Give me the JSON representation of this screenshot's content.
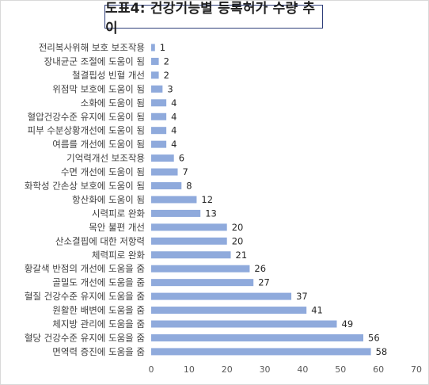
{
  "chart_data": {
    "type": "bar",
    "orientation": "horizontal",
    "title": "도표4: 건강기능별 등록허가 수량 추이",
    "categories": [
      "전리복사위해 보호 보조작용",
      "장내균군 조절에 도움이 됨",
      "철결핍성 빈혈 개선",
      "위점막 보호에 도움이 됨",
      "소화에 도움이 됨",
      "혈압건강수준 유지에 도움이 됨",
      "피부 수분상황개선에 도움이 됨",
      "여름를 개선에 도움이 됨",
      "기억력개선 보조작용",
      "수면 개선에 도움이 됨",
      "화학성 간손상 보호에 도움이 됨",
      "항산화에 도움이 됨",
      "시력피로 완화",
      "목안 불편 개선",
      "산소결핍에 대한 저항력",
      "체력피로 완화",
      "황갈색 반점의 개선에 도움을 줌",
      "골밀도 개선에 도움을 줌",
      "혈질 건강수준 유지에 도움을 줌",
      "원활한 배변에 도움을 줌",
      "체지방 관리에 도움을 줌",
      "혈당 건강수준 유지에 도움을 줌",
      "면역력 증진에 도움을 줌"
    ],
    "values": [
      1,
      2,
      2,
      3,
      4,
      4,
      4,
      4,
      6,
      7,
      8,
      12,
      13,
      20,
      20,
      21,
      26,
      27,
      37,
      41,
      49,
      56,
      58
    ],
    "xlim": [
      0,
      70
    ],
    "xticks": [
      0,
      10,
      20,
      30,
      40,
      50,
      60,
      70
    ],
    "xlabel": "",
    "ylabel": "",
    "grid": false,
    "legend": "none",
    "bar_color": "#8faadc",
    "data_labels": true
  }
}
